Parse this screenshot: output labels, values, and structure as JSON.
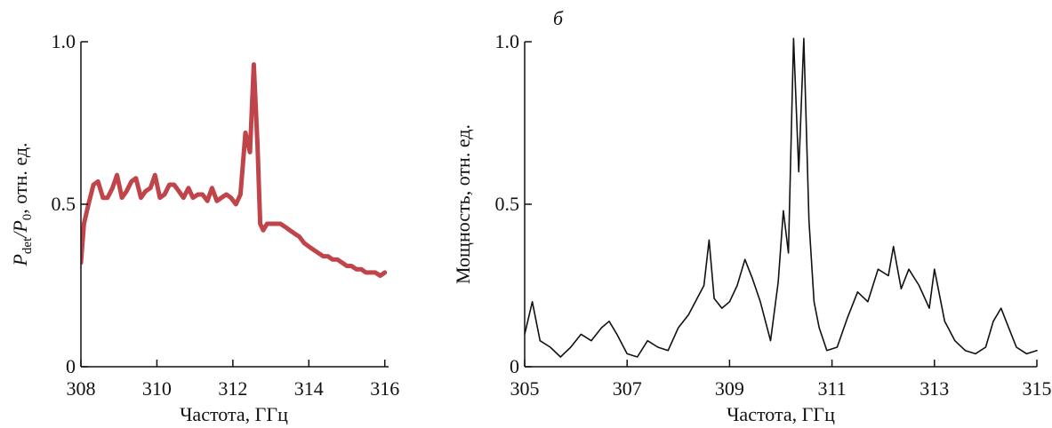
{
  "chart_data": [
    {
      "type": "line",
      "panel_label": "",
      "xlabel": "Частота, ГГц",
      "ylabel_main": "P",
      "ylabel_sub1": "det",
      "ylabel_slash": "/P",
      "ylabel_sub2": "0",
      "ylabel_rest": ", отн. ед.",
      "xlim": [
        308,
        316.1
      ],
      "ylim": [
        0,
        1.0
      ],
      "xticks": [
        "308",
        "310",
        "312",
        "314",
        "316"
      ],
      "yticks": [
        "0",
        "0.5",
        "1.0"
      ],
      "color": "#b5252c",
      "series": [
        {
          "x": [
            308.0,
            308.08,
            308.2,
            308.33,
            308.45,
            308.58,
            308.7,
            308.83,
            308.95,
            309.08,
            309.2,
            309.33,
            309.45,
            309.58,
            309.7,
            309.83,
            309.95,
            310.08,
            310.2,
            310.33,
            310.45,
            310.58,
            310.7,
            310.83,
            310.95,
            311.08,
            311.2,
            311.33,
            311.45,
            311.58,
            311.7,
            311.83,
            311.95,
            312.08,
            312.2,
            312.33,
            312.45,
            312.55,
            312.65,
            312.72,
            312.8,
            312.9,
            313.0,
            313.12,
            313.25,
            313.38,
            313.5,
            313.62,
            313.75,
            313.88,
            314.0,
            314.12,
            314.25,
            314.38,
            314.5,
            314.62,
            314.75,
            314.88,
            315.0,
            315.12,
            315.25,
            315.38,
            315.5,
            315.62,
            315.75,
            315.88,
            316.0
          ],
          "y": [
            0.32,
            0.44,
            0.5,
            0.56,
            0.57,
            0.52,
            0.52,
            0.55,
            0.59,
            0.52,
            0.54,
            0.57,
            0.58,
            0.52,
            0.54,
            0.55,
            0.59,
            0.52,
            0.53,
            0.56,
            0.56,
            0.54,
            0.52,
            0.55,
            0.52,
            0.53,
            0.53,
            0.51,
            0.55,
            0.51,
            0.52,
            0.53,
            0.52,
            0.5,
            0.53,
            0.72,
            0.66,
            0.93,
            0.68,
            0.44,
            0.42,
            0.44,
            0.44,
            0.44,
            0.44,
            0.43,
            0.42,
            0.41,
            0.4,
            0.38,
            0.37,
            0.36,
            0.35,
            0.34,
            0.34,
            0.33,
            0.33,
            0.32,
            0.31,
            0.31,
            0.3,
            0.3,
            0.29,
            0.29,
            0.29,
            0.28,
            0.29
          ]
        }
      ]
    },
    {
      "type": "line",
      "panel_label": "б",
      "xlabel": "Частота, ГГц",
      "ylabel": "Мощность, отн. ед.",
      "xlim": [
        305,
        315
      ],
      "ylim": [
        0,
        1.0
      ],
      "xticks": [
        "305",
        "307",
        "309",
        "311",
        "313",
        "315"
      ],
      "yticks": [
        "0",
        "0.5",
        "1.0"
      ],
      "color": "#111111",
      "series": [
        {
          "x": [
            305.0,
            305.15,
            305.3,
            305.5,
            305.7,
            305.9,
            306.1,
            306.3,
            306.5,
            306.65,
            306.8,
            307.0,
            307.2,
            307.4,
            307.6,
            307.8,
            308.0,
            308.2,
            308.4,
            308.5,
            308.6,
            308.7,
            308.85,
            309.0,
            309.15,
            309.3,
            309.45,
            309.6,
            309.8,
            309.95,
            310.05,
            310.15,
            310.25,
            310.35,
            310.45,
            310.55,
            310.65,
            310.75,
            310.9,
            311.1,
            311.3,
            311.5,
            311.7,
            311.9,
            312.1,
            312.2,
            312.35,
            312.5,
            312.7,
            312.9,
            313.0,
            313.2,
            313.4,
            313.6,
            313.8,
            314.0,
            314.15,
            314.3,
            314.45,
            314.6,
            314.8,
            315.0
          ],
          "y": [
            0.1,
            0.2,
            0.08,
            0.06,
            0.03,
            0.06,
            0.1,
            0.08,
            0.12,
            0.14,
            0.1,
            0.04,
            0.03,
            0.08,
            0.06,
            0.05,
            0.12,
            0.16,
            0.22,
            0.25,
            0.39,
            0.21,
            0.18,
            0.2,
            0.25,
            0.33,
            0.27,
            0.2,
            0.08,
            0.26,
            0.48,
            0.35,
            1.01,
            0.6,
            1.01,
            0.45,
            0.2,
            0.12,
            0.05,
            0.06,
            0.15,
            0.23,
            0.2,
            0.3,
            0.28,
            0.37,
            0.24,
            0.3,
            0.25,
            0.18,
            0.3,
            0.14,
            0.08,
            0.05,
            0.04,
            0.06,
            0.14,
            0.18,
            0.12,
            0.06,
            0.04,
            0.05
          ]
        }
      ]
    }
  ]
}
